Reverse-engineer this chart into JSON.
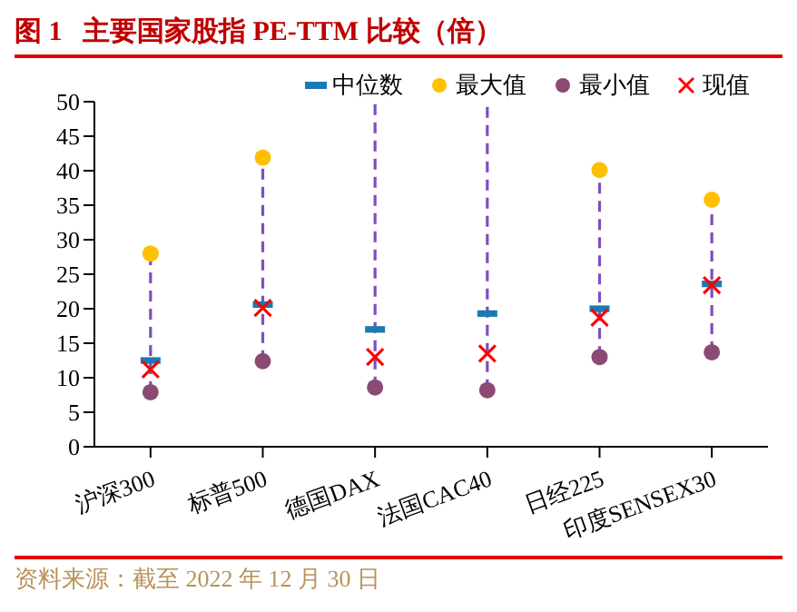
{
  "chart_data": {
    "type": "scatter",
    "title": "图 1   主要国家股指 PE-TTM 比较（倍）",
    "annotations": [
      "资料来源：截至 2022 年 12 月 30 日"
    ],
    "categories": [
      "沪深300",
      "标普500",
      "德国DAX",
      "法国CAC40",
      "日经225",
      "印度SENSEX30"
    ],
    "series": [
      {
        "name": "中位数",
        "color": "#1a7ab5",
        "marker": "square",
        "values": [
          12.5,
          20.6,
          17.0,
          19.3,
          20.0,
          23.6
        ]
      },
      {
        "name": "最大值",
        "color": "#ffc000",
        "marker": "circle",
        "values": [
          28.0,
          41.9,
          null,
          null,
          40.1,
          35.8
        ]
      },
      {
        "name": "最小值",
        "color": "#8b4a74",
        "marker": "circle",
        "values": [
          7.9,
          12.4,
          8.6,
          8.2,
          13.0,
          13.7
        ]
      },
      {
        "name": "现值",
        "color": "#ff0000",
        "marker": "cross",
        "values": [
          11.2,
          20.1,
          13.0,
          13.5,
          18.7,
          23.4
        ]
      }
    ],
    "ylim": [
      0,
      50
    ],
    "yticks": [
      0,
      5,
      10,
      15,
      20,
      25,
      30,
      35,
      40,
      45,
      50
    ],
    "legend": "top right"
  }
}
